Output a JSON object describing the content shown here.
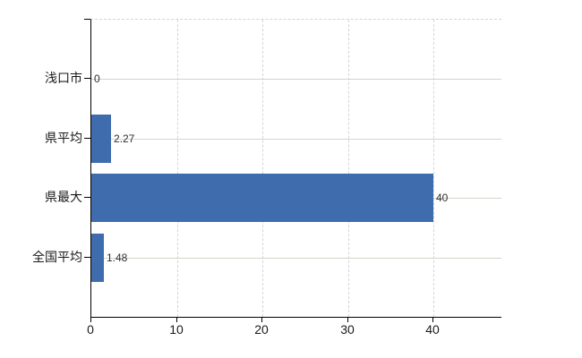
{
  "chart_data": {
    "type": "bar",
    "orientation": "horizontal",
    "title": "",
    "categories": [
      "浅口市",
      "県平均",
      "県最大",
      "全国平均"
    ],
    "values": [
      0,
      2.27,
      40,
      1.48
    ],
    "value_labels": [
      "0",
      "2.27",
      "40",
      "1.48"
    ],
    "x_tick_labels": [
      "0",
      "10",
      "20",
      "30",
      "40"
    ],
    "x_tick_values": [
      0,
      10,
      20,
      30,
      40
    ],
    "xlim": [
      0,
      47.9
    ],
    "ylabel": "",
    "xlabel": "",
    "legend": "none",
    "grid": {
      "vertical_style": "dashed",
      "horizontal_style": "solid",
      "top_border_style": "dashed"
    },
    "colors": {
      "bar": "#3e6cac",
      "axis": "#000000",
      "solid_gridline": "#d0d7cb",
      "dashed_gridline": "#d6d3d8",
      "category_text": "#1a1a1a",
      "value_text": "#303030",
      "tick_text": "#1a1a1a"
    }
  }
}
